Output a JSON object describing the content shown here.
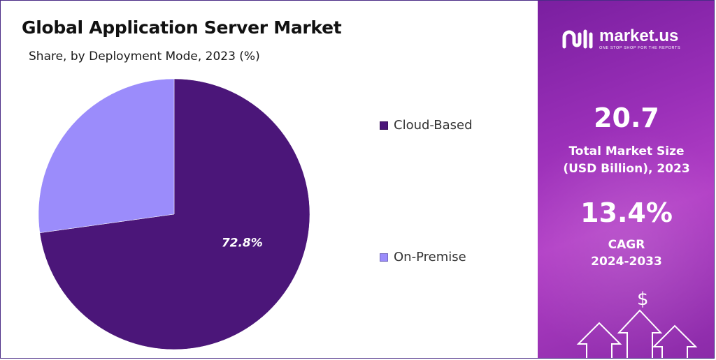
{
  "chart_data": {
    "type": "pie",
    "title": "Global Application Server Market",
    "subtitle": "Share, by Deployment Mode, 2023 (%)",
    "slices": [
      {
        "label": "Cloud-Based",
        "value": 72.8,
        "color": "#4b1679",
        "data_label": "72.8%"
      },
      {
        "label": "On-Premise",
        "value": 27.2,
        "color": "#9b8cfb",
        "data_label": ""
      }
    ],
    "legend_position": "right"
  },
  "brand": {
    "name": "market.us",
    "tagline": "ONE STOP SHOP FOR THE REPORTS"
  },
  "stats": {
    "market_size_value": "20.7",
    "market_size_label_1": "Total Market Size",
    "market_size_label_2": "(USD Billion), 2023",
    "cagr_value": "13.4%",
    "cagr_label_1": "CAGR",
    "cagr_label_2": "2024-2033"
  },
  "icons": {
    "dollar_symbol": "$",
    "decoration": "rising-arrows-icon"
  }
}
